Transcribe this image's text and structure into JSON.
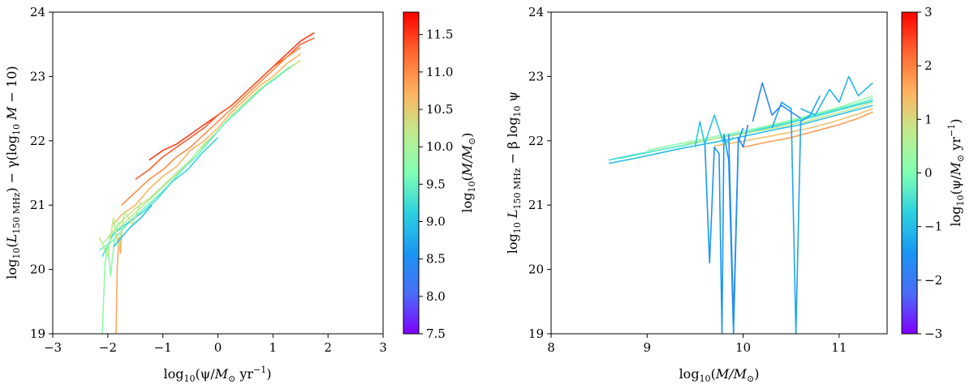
{
  "chart_data": [
    {
      "type": "line",
      "title": "",
      "xlabel": "log10(ψ/M⊙ yr−1)",
      "ylabel": "log10(L150 MHz) − γ(log10 M − 10)",
      "xlim": [
        -3,
        3
      ],
      "ylim": [
        19,
        24
      ],
      "x_ticks": [
        "−3",
        "−2",
        "−1",
        "0",
        "1",
        "2",
        "3"
      ],
      "y_ticks": [
        "19",
        "20",
        "21",
        "22",
        "23",
        "24"
      ],
      "grid": false,
      "colorbar": {
        "label": "log10(M/M⊙)",
        "range": [
          7.5,
          11.8
        ],
        "ticks": [
          "7.5",
          "8.0",
          "8.5",
          "9.0",
          "9.5",
          "10.0",
          "10.5",
          "11.0",
          "11.5"
        ],
        "colormap": "rainbow"
      },
      "series": [
        {
          "c": 11.5,
          "x": [
            -1.25,
            -1.0,
            -0.75,
            -0.5,
            -0.25,
            0.0,
            0.25,
            0.5,
            0.75,
            1.0,
            1.25,
            1.5,
            1.75
          ],
          "y": [
            21.7,
            21.85,
            21.95,
            22.1,
            22.25,
            22.4,
            22.55,
            22.75,
            22.95,
            23.15,
            23.35,
            23.55,
            23.68
          ]
        },
        {
          "c": 11.3,
          "x": [
            -1.5,
            -1.25,
            -1.0,
            -0.75,
            -0.5,
            -0.25,
            0.0,
            0.25,
            0.5,
            0.75,
            1.0,
            1.25,
            1.5,
            1.75
          ],
          "y": [
            21.4,
            21.55,
            21.75,
            21.9,
            22.05,
            22.2,
            22.4,
            22.55,
            22.75,
            22.95,
            23.15,
            23.3,
            23.5,
            23.6
          ]
        },
        {
          "c": 11.0,
          "x": [
            -1.75,
            -1.5,
            -1.25,
            -1.0,
            -0.75,
            -0.5,
            -0.25,
            0.0,
            0.25,
            0.5,
            0.75,
            1.0,
            1.25,
            1.5
          ],
          "y": [
            21.0,
            21.2,
            21.4,
            21.55,
            21.75,
            21.9,
            22.1,
            22.3,
            22.5,
            22.7,
            22.9,
            23.1,
            23.3,
            23.45
          ]
        },
        {
          "c": 10.7,
          "x": [
            -1.9,
            -1.75,
            -1.5,
            -1.25,
            -1.0,
            -0.75,
            -0.5,
            -0.25,
            0.0,
            0.25,
            0.5,
            0.75,
            1.0,
            1.25,
            1.5
          ],
          "y": [
            20.7,
            20.85,
            21.0,
            21.25,
            21.45,
            21.6,
            21.85,
            22.0,
            22.2,
            22.45,
            22.65,
            22.85,
            23.0,
            23.2,
            23.35
          ]
        },
        {
          "c": 10.3,
          "x": [
            -2.0,
            -1.75,
            -1.5,
            -1.25,
            -1.0,
            -0.75,
            -0.5,
            -0.25,
            0.0,
            0.25,
            0.5,
            0.75,
            1.0,
            1.25,
            1.5
          ],
          "y": [
            20.5,
            20.75,
            20.95,
            21.1,
            21.3,
            21.5,
            21.7,
            21.95,
            22.15,
            22.4,
            22.6,
            22.8,
            22.95,
            23.1,
            23.25
          ]
        },
        {
          "c": 10.0,
          "x": [
            -2.1,
            -1.85,
            -1.6,
            -1.35,
            -1.1,
            -0.85,
            -0.6,
            -0.35,
            -0.1,
            0.15,
            0.4,
            0.65,
            0.9,
            1.15,
            1.4
          ],
          "y": [
            20.4,
            20.6,
            20.8,
            21.0,
            21.2,
            21.4,
            21.6,
            21.85,
            22.05,
            22.3,
            22.5,
            22.7,
            22.9,
            23.05,
            23.2
          ]
        },
        {
          "c": 9.5,
          "x": [
            -2.15,
            -1.9,
            -1.65,
            -1.4,
            -1.15,
            -0.9,
            -0.65,
            -0.4,
            -0.15,
            0.1,
            0.35,
            0.6,
            0.85,
            1.1,
            1.3
          ],
          "y": [
            20.3,
            20.45,
            20.7,
            20.9,
            21.1,
            21.3,
            21.55,
            21.75,
            22.0,
            22.25,
            22.45,
            22.65,
            22.85,
            23.0,
            23.15
          ]
        },
        {
          "c": 9.2,
          "x": [
            -2.1,
            -1.9,
            -1.6,
            -1.35,
            -1.1,
            -0.85,
            -0.55,
            -0.3,
            0.0
          ],
          "y": [
            20.2,
            20.55,
            20.75,
            20.9,
            21.1,
            21.35,
            21.55,
            21.8,
            22.05
          ]
        },
        {
          "c": 9.8,
          "x": [
            -2.1,
            -2.05,
            -2.0,
            -1.95,
            -1.9,
            -1.85,
            -1.8
          ],
          "y": [
            19.0,
            20.1,
            20.4,
            19.9,
            20.3,
            20.6,
            20.75
          ]
        },
        {
          "c": 10.8,
          "x": [
            -1.85,
            -1.83,
            -1.8,
            -1.77,
            -1.75
          ],
          "y": [
            19.0,
            20.0,
            20.5,
            20.25,
            20.6
          ]
        },
        {
          "c": 10.2,
          "x": [
            -2.15,
            -2.0,
            -1.9,
            -1.8,
            -1.7,
            -1.55,
            -1.4
          ],
          "y": [
            20.5,
            20.2,
            20.8,
            20.35,
            20.9,
            20.7,
            21.05
          ]
        },
        {
          "c": 9.0,
          "x": [
            -1.9,
            -1.75,
            -1.6,
            -1.4,
            -1.2
          ],
          "y": [
            20.35,
            20.5,
            20.65,
            20.8,
            21.0
          ]
        }
      ]
    },
    {
      "type": "line",
      "title": "",
      "xlabel": "log10(M/M⊙)",
      "ylabel": "log10 L150 MHz − β log10 ψ",
      "xlim": [
        8,
        11.5
      ],
      "ylim": [
        19,
        24
      ],
      "x_ticks": [
        "8",
        "9",
        "10",
        "11"
      ],
      "y_ticks": [
        "19",
        "20",
        "21",
        "22",
        "23",
        "24"
      ],
      "grid": false,
      "colorbar": {
        "label": "log10(ψ/M⊙ yr−1)",
        "range": [
          -3,
          3
        ],
        "ticks": [
          "−3",
          "−2",
          "−1",
          "0",
          "1",
          "2",
          "3"
        ],
        "colormap": "rainbow"
      },
      "series": [
        {
          "c": -1.0,
          "x": [
            8.6,
            8.85,
            9.1,
            9.35,
            9.6,
            9.85,
            10.1,
            10.35,
            10.6,
            10.85,
            11.1,
            11.35
          ],
          "y": [
            21.65,
            21.72,
            21.8,
            21.88,
            21.95,
            22.02,
            22.1,
            22.18,
            22.25,
            22.35,
            22.45,
            22.55
          ]
        },
        {
          "c": -0.7,
          "x": [
            8.6,
            8.85,
            9.1,
            9.35,
            9.6,
            9.85,
            10.1,
            10.35,
            10.6,
            10.85,
            11.1,
            11.35
          ],
          "y": [
            21.7,
            21.78,
            21.85,
            21.92,
            22.0,
            22.08,
            22.15,
            22.23,
            22.32,
            22.42,
            22.52,
            22.62
          ]
        },
        {
          "c": -0.3,
          "x": [
            8.7,
            8.95,
            9.2,
            9.45,
            9.7,
            9.95,
            10.2,
            10.45,
            10.7,
            10.95,
            11.2,
            11.35
          ],
          "y": [
            21.72,
            21.8,
            21.88,
            21.95,
            22.03,
            22.1,
            22.2,
            22.28,
            22.38,
            22.48,
            22.58,
            22.65
          ]
        },
        {
          "c": 0.2,
          "x": [
            9.0,
            9.25,
            9.5,
            9.75,
            10.0,
            10.25,
            10.5,
            10.75,
            11.0,
            11.2,
            11.35
          ],
          "y": [
            21.85,
            21.93,
            22.0,
            22.08,
            22.15,
            22.23,
            22.32,
            22.42,
            22.52,
            22.62,
            22.7
          ]
        },
        {
          "c": 0.8,
          "x": [
            9.4,
            9.65,
            9.9,
            10.15,
            10.4,
            10.65,
            10.9,
            11.15,
            11.35
          ],
          "y": [
            21.95,
            22.02,
            22.08,
            22.15,
            22.22,
            22.3,
            22.4,
            22.5,
            22.6
          ]
        },
        {
          "c": 1.3,
          "x": [
            9.7,
            9.95,
            10.2,
            10.45,
            10.7,
            10.95,
            11.2,
            11.35
          ],
          "y": [
            21.92,
            21.98,
            22.05,
            22.12,
            22.2,
            22.3,
            22.42,
            22.5
          ]
        },
        {
          "c": 1.7,
          "x": [
            10.0,
            10.25,
            10.5,
            10.75,
            11.0,
            11.2,
            11.35
          ],
          "y": [
            21.9,
            21.98,
            22.05,
            22.15,
            22.25,
            22.35,
            22.45
          ]
        },
        {
          "c": -1.5,
          "x": [
            9.6,
            9.65,
            9.7,
            9.75,
            9.78,
            9.8,
            9.85,
            9.9,
            9.95,
            10.0
          ],
          "y": [
            22.0,
            20.1,
            21.9,
            21.8,
            19.0,
            22.1,
            21.7,
            19.0,
            22.0,
            22.2
          ]
        },
        {
          "c": -1.7,
          "x": [
            9.85,
            9.9,
            9.95,
            10.0,
            10.05
          ],
          "y": [
            22.1,
            19.2,
            22.05,
            21.9,
            22.25
          ]
        },
        {
          "c": -1.3,
          "x": [
            10.3,
            10.4,
            10.5,
            10.55,
            10.6,
            10.7,
            10.8
          ],
          "y": [
            22.2,
            22.6,
            22.5,
            19.0,
            22.3,
            22.4,
            22.7
          ]
        },
        {
          "c": -1.1,
          "x": [
            10.6,
            10.75,
            10.9,
            11.0,
            11.1,
            11.2,
            11.35
          ],
          "y": [
            22.5,
            22.4,
            22.8,
            22.6,
            23.0,
            22.7,
            22.9
          ]
        },
        {
          "c": -1.8,
          "x": [
            10.1,
            10.2,
            10.3,
            10.4,
            10.5,
            10.6
          ],
          "y": [
            22.3,
            22.9,
            22.4,
            22.55,
            22.45,
            22.35
          ]
        },
        {
          "c": -0.9,
          "x": [
            9.5,
            9.55,
            9.6,
            9.7,
            9.8,
            9.9
          ],
          "y": [
            21.9,
            22.3,
            21.95,
            22.4,
            21.95,
            22.05
          ]
        }
      ]
    }
  ]
}
